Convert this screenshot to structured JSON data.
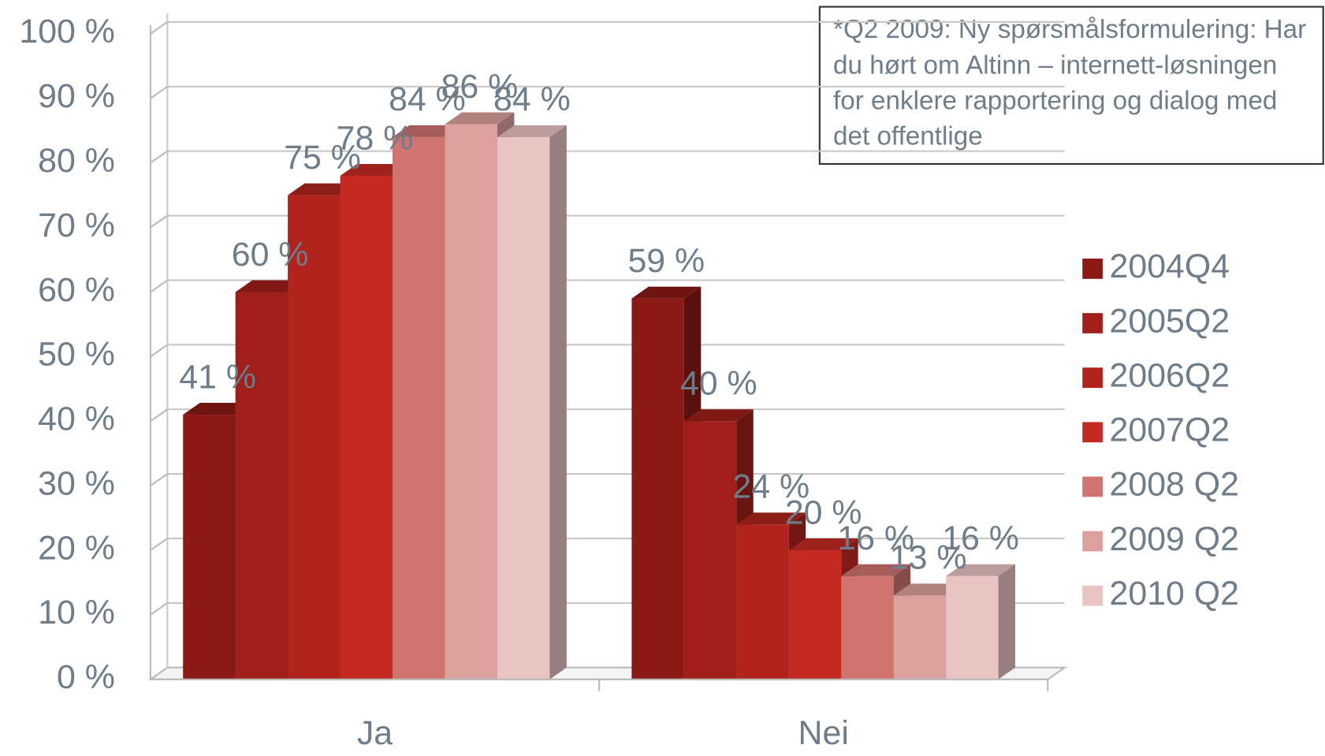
{
  "chart_data": {
    "type": "bar3d",
    "annotation": "*Q2 2009: Ny spørsmålsformulering: Har du hørt om Altinn – internett-løsningen for enklere rapportering og dialog med det offentlige",
    "categories": [
      "Ja",
      "Nei"
    ],
    "series": [
      {
        "name": "2004Q4",
        "color": "#8b1a16",
        "values": [
          41,
          59
        ],
        "value_labels": [
          "41 %",
          "59 %"
        ]
      },
      {
        "name": "2005Q2",
        "color": "#a01f1a",
        "values": [
          60,
          40
        ],
        "value_labels": [
          "60 %",
          "40 %"
        ]
      },
      {
        "name": "2006Q2",
        "color": "#b0241d",
        "values": [
          75,
          24
        ],
        "value_labels": [
          "75 %",
          "24 %"
        ]
      },
      {
        "name": "2007Q2",
        "color": "#c42a22",
        "values": [
          78,
          20
        ],
        "value_labels": [
          "78 %",
          "20 %"
        ]
      },
      {
        "name": "2008 Q2",
        "color": "#d07470",
        "values": [
          84,
          16
        ],
        "value_labels": [
          "84 %",
          "16 %"
        ]
      },
      {
        "name": "2009 Q2",
        "color": "#dca19f",
        "values": [
          86,
          13
        ],
        "value_labels": [
          "86 %",
          "13 %"
        ]
      },
      {
        "name": "2010 Q2",
        "color": "#e8c4c3",
        "values": [
          84,
          16
        ],
        "value_labels": [
          "84 %",
          "16 %"
        ]
      }
    ],
    "ylim": [
      0,
      100
    ],
    "yticks": [
      {
        "value": 0,
        "label": "0 %"
      },
      {
        "value": 10,
        "label": "10 %"
      },
      {
        "value": 20,
        "label": "20 %"
      },
      {
        "value": 30,
        "label": "30 %"
      },
      {
        "value": 40,
        "label": "40 %"
      },
      {
        "value": 50,
        "label": "50 %"
      },
      {
        "value": 60,
        "label": "60 %"
      },
      {
        "value": 70,
        "label": "70 %"
      },
      {
        "value": 80,
        "label": "80 %"
      },
      {
        "value": 90,
        "label": "90 %"
      },
      {
        "value": 100,
        "label": "100 %"
      }
    ],
    "grid": true,
    "legend": "right"
  }
}
